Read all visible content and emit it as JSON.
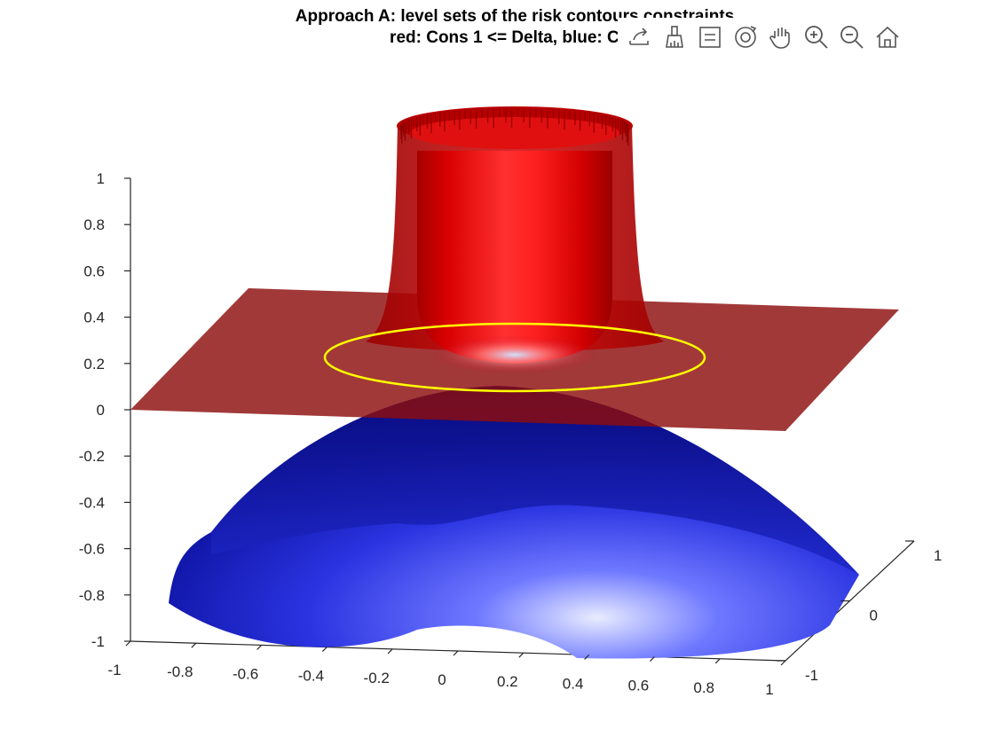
{
  "chart_data": {
    "type": "surface3d",
    "title_lines": [
      "Approach A: level sets of the risk contours constraints",
      "red: Cons 1 <= Delta, blue: Con"
    ],
    "x_ticks": [
      "-1",
      "-0.8",
      "-0.6",
      "-0.4",
      "-0.2",
      "0",
      "0.2",
      "0.4",
      "0.6",
      "0.8",
      "1"
    ],
    "y_ticks": [
      "-1",
      "0",
      "1"
    ],
    "z_ticks": [
      "-1",
      "-0.8",
      "-0.6",
      "-0.4",
      "-0.2",
      "0",
      "0.2",
      "0.4",
      "0.6",
      "0.8",
      "1"
    ],
    "xlim": [
      -1,
      1
    ],
    "ylim": [
      -1,
      1
    ],
    "zlim": [
      -1,
      1
    ],
    "grid": false,
    "surfaces": [
      {
        "kind": "plane",
        "z": 0.0,
        "color": "#9b1111"
      },
      {
        "kind": "cylinder",
        "center": [
          0,
          0
        ],
        "radius": 0.5,
        "z_range": [
          0.25,
          1.0
        ],
        "color": "#e00000"
      },
      {
        "kind": "dome",
        "z_top": 0.25,
        "z_edge": -1.0,
        "color": "#1010c8"
      }
    ],
    "contour": {
      "kind": "circle",
      "center": [
        0,
        0
      ],
      "radius": 0.75,
      "z": 0.2,
      "color": "#ffff00"
    }
  },
  "toolbar": {
    "buttons": [
      {
        "name": "export-button",
        "icon": "export-icon"
      },
      {
        "name": "brush-button",
        "icon": "brush-icon"
      },
      {
        "name": "datatip-button",
        "icon": "datatip-icon"
      },
      {
        "name": "rotate3d-button",
        "icon": "rotate3d-icon"
      },
      {
        "name": "pan-button",
        "icon": "pan-hand-icon"
      },
      {
        "name": "zoom-in-button",
        "icon": "zoom-in-icon"
      },
      {
        "name": "zoom-out-button",
        "icon": "zoom-out-icon"
      },
      {
        "name": "restore-view-button",
        "icon": "home-icon"
      }
    ]
  }
}
